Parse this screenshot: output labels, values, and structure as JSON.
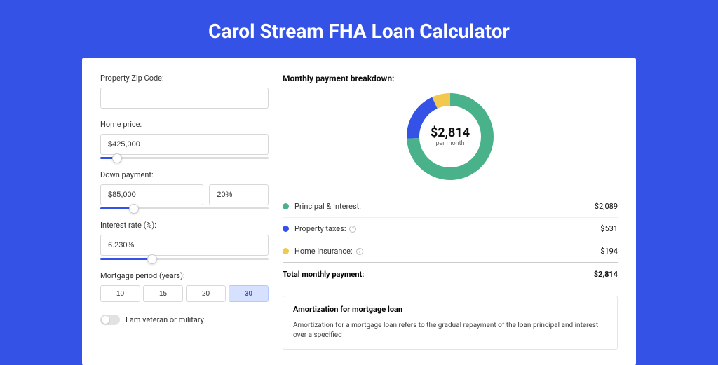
{
  "page": {
    "title": "Carol Stream FHA Loan Calculator",
    "background_color": "#3452e6"
  },
  "form": {
    "zip": {
      "label": "Property Zip Code:",
      "value": ""
    },
    "home_price": {
      "label": "Home price:",
      "value": "$425,000",
      "slider_percent": 10
    },
    "down_payment": {
      "label": "Down payment:",
      "amount": "$85,000",
      "percent": "20%",
      "slider_percent": 20
    },
    "interest_rate": {
      "label": "Interest rate (%):",
      "value": "6.230%",
      "slider_percent": 31
    },
    "mortgage_period": {
      "label": "Mortgage period (years):",
      "options": [
        "10",
        "15",
        "20",
        "30"
      ],
      "active_index": 3
    },
    "veteran": {
      "label": "I am veteran or military",
      "checked": false
    }
  },
  "breakdown": {
    "title": "Monthly payment breakdown:",
    "center_amount": "$2,814",
    "center_sub": "per month",
    "items": [
      {
        "label": "Principal & Interest:",
        "value": "$2,089",
        "color": "#4ab28b",
        "fraction": 0.742,
        "info": false
      },
      {
        "label": "Property taxes:",
        "value": "$531",
        "color": "#3452e6",
        "fraction": 0.189,
        "info": true
      },
      {
        "label": "Home insurance:",
        "value": "$194",
        "color": "#f2c94c",
        "fraction": 0.069,
        "info": true
      }
    ],
    "total": {
      "label": "Total monthly payment:",
      "value": "$2,814"
    },
    "donut": {
      "size": 124,
      "thickness": 18,
      "background_color": "#ffffff"
    }
  },
  "amortization": {
    "title": "Amortization for mortgage loan",
    "text": "Amortization for a mortgage loan refers to the gradual repayment of the loan principal and interest over a specified"
  }
}
